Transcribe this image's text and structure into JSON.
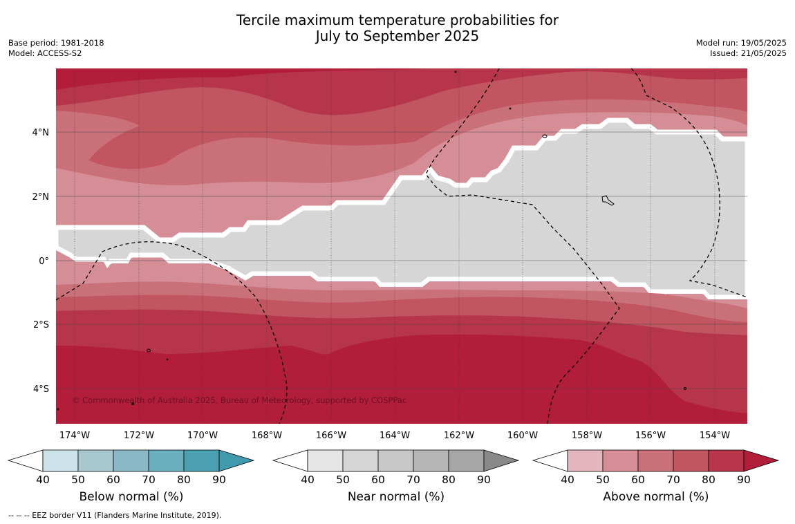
{
  "title_line1": "Tercile maximum temperature probabilities for",
  "title_line2": "July to September 2025",
  "base_period": "Base period: 1981-2018",
  "model": "Model: ACCESS-S2",
  "model_run": "Model run: 19/05/2025",
  "issued": "Issued: 21/05/2025",
  "copyright": "© Commonwealth of Australia 2025, Bureau of Meteorology, supported by COSPPac",
  "lon_ticks": [
    "174°W",
    "172°W",
    "170°W",
    "168°W",
    "166°W",
    "164°W",
    "162°W",
    "160°W",
    "158°W",
    "156°W",
    "154°W"
  ],
  "lat_ticks": [
    "4°N",
    "2°N",
    "0°",
    "2°S",
    "4°S"
  ],
  "colorbars": [
    {
      "label": "Below normal (%)",
      "ticks": [
        "40",
        "50",
        "60",
        "70",
        "80",
        "90"
      ],
      "colors": [
        "#cce3ea",
        "#a8c8cf",
        "#8ab8c6",
        "#6aafbd",
        "#4aa0b1",
        "#3f9aae"
      ]
    },
    {
      "label": "Near normal (%)",
      "ticks": [
        "40",
        "50",
        "60",
        "70",
        "80",
        "90"
      ],
      "colors": [
        "#e6e6e6",
        "#d6d6d6",
        "#c7c7c7",
        "#b6b6b6",
        "#a6a6a6",
        "#888888"
      ]
    },
    {
      "label": "Above normal (%)",
      "ticks": [
        "40",
        "50",
        "60",
        "70",
        "80",
        "90"
      ],
      "colors": [
        "#e3b7bd",
        "#d58d96",
        "#ca7079",
        "#c15560",
        "#b6354a",
        "#b21d3a"
      ]
    }
  ],
  "footnote": "-- -- -- EEZ border V11 (Flanders Marine Institute, 2019)."
}
